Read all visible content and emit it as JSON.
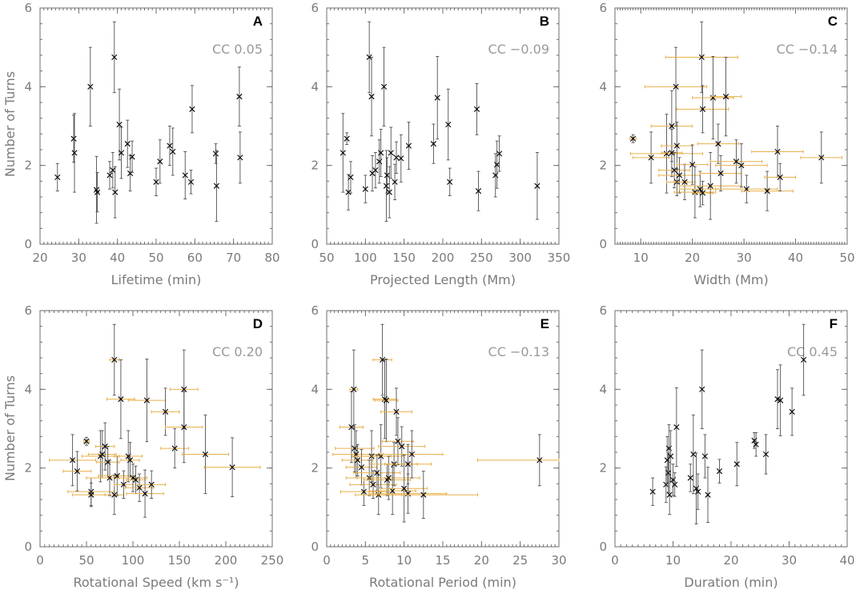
{
  "figure": {
    "ylabel": "Number of Turns"
  },
  "chart_data": [
    {
      "type": "scatter",
      "letter": "A",
      "cc": "CC 0.05",
      "xlabel": "Lifetime (min)",
      "ylabel": "Number of Turns",
      "xlim": [
        20,
        80
      ],
      "ylim": [
        0,
        6
      ],
      "xticks": [
        20,
        30,
        40,
        50,
        60,
        70,
        80
      ],
      "yticks": [
        0,
        2,
        4,
        6
      ],
      "xminor": 5,
      "points": [
        {
          "x": 24.5,
          "y": 1.7,
          "ye": 0.35
        },
        {
          "x": 28.7,
          "y": 2.68,
          "ye": 0.6
        },
        {
          "x": 28.9,
          "y": 2.32,
          "ye": 1.0
        },
        {
          "x": 33.0,
          "y": 4.0,
          "ye": 1.0
        },
        {
          "x": 34.6,
          "y": 1.38,
          "ye": 0.85
        },
        {
          "x": 34.8,
          "y": 1.32,
          "ye": 0.5
        },
        {
          "x": 38.0,
          "y": 1.75,
          "ye": 0.35
        },
        {
          "x": 38.8,
          "y": 1.88,
          "ye": 0.45
        },
        {
          "x": 39.2,
          "y": 4.75,
          "ye": 0.9
        },
        {
          "x": 39.4,
          "y": 1.32,
          "ye": 0.65
        },
        {
          "x": 40.5,
          "y": 3.04,
          "ye": 0.9
        },
        {
          "x": 41.0,
          "y": 2.32,
          "ye": 0.65
        },
        {
          "x": 42.6,
          "y": 2.55,
          "ye": 0.6
        },
        {
          "x": 43.3,
          "y": 1.8,
          "ye": 0.45
        },
        {
          "x": 43.8,
          "y": 2.22,
          "ye": 0.4
        },
        {
          "x": 50.0,
          "y": 1.58,
          "ye": 0.35
        },
        {
          "x": 51.0,
          "y": 2.1,
          "ye": 0.55
        },
        {
          "x": 53.5,
          "y": 2.5,
          "ye": 0.5
        },
        {
          "x": 54.3,
          "y": 2.35,
          "ye": 0.6
        },
        {
          "x": 57.5,
          "y": 1.75,
          "ye": 0.6
        },
        {
          "x": 59.0,
          "y": 1.58,
          "ye": 0.3
        },
        {
          "x": 59.3,
          "y": 3.43,
          "ye": 0.6
        },
        {
          "x": 65.4,
          "y": 2.3,
          "ye": 0.25
        },
        {
          "x": 65.6,
          "y": 1.48,
          "ye": 0.9
        },
        {
          "x": 71.5,
          "y": 3.75,
          "ye": 0.75
        },
        {
          "x": 71.7,
          "y": 2.2,
          "ye": 0.65
        }
      ]
    },
    {
      "type": "scatter",
      "letter": "B",
      "cc": "CC −0.09",
      "xlabel": "Projected Length (Mm)",
      "ylabel": "",
      "xlim": [
        50,
        350
      ],
      "ylim": [
        0,
        6
      ],
      "xticks": [
        50,
        100,
        150,
        200,
        250,
        300,
        350
      ],
      "yticks": [
        0,
        2,
        4,
        6
      ],
      "xminor": 25,
      "points": [
        {
          "x": 71,
          "y": 2.32,
          "ye": 1.0
        },
        {
          "x": 76,
          "y": 2.68,
          "ye": 0.15
        },
        {
          "x": 78,
          "y": 1.32,
          "ye": 0.45
        },
        {
          "x": 81,
          "y": 1.7,
          "ye": 0.4
        },
        {
          "x": 100,
          "y": 1.4,
          "ye": 0.35
        },
        {
          "x": 105,
          "y": 4.75,
          "ye": 0.9
        },
        {
          "x": 108,
          "y": 3.75,
          "ye": 1.0
        },
        {
          "x": 109,
          "y": 1.8,
          "ye": 0.45
        },
        {
          "x": 113,
          "y": 1.88,
          "ye": 0.45
        },
        {
          "x": 118,
          "y": 2.1,
          "ye": 0.55
        },
        {
          "x": 120,
          "y": 2.32,
          "ye": 0.6
        },
        {
          "x": 124,
          "y": 4.0,
          "ye": 1.0
        },
        {
          "x": 127,
          "y": 1.48,
          "ye": 0.9
        },
        {
          "x": 128,
          "y": 1.75,
          "ye": 0.45
        },
        {
          "x": 131,
          "y": 1.32,
          "ye": 0.65
        },
        {
          "x": 133,
          "y": 2.32,
          "ye": 0.65
        },
        {
          "x": 138,
          "y": 1.58,
          "ye": 0.45
        },
        {
          "x": 140,
          "y": 2.2,
          "ye": 0.4
        },
        {
          "x": 146,
          "y": 2.18,
          "ye": 0.6
        },
        {
          "x": 156,
          "y": 2.5,
          "ye": 0.6
        },
        {
          "x": 188,
          "y": 2.55,
          "ye": 0.5
        },
        {
          "x": 193,
          "y": 3.72,
          "ye": 1.05
        },
        {
          "x": 207,
          "y": 3.04,
          "ye": 0.9
        },
        {
          "x": 209,
          "y": 1.58,
          "ye": 0.35
        },
        {
          "x": 244,
          "y": 3.43,
          "ye": 0.65
        },
        {
          "x": 246,
          "y": 1.35,
          "ye": 0.5
        },
        {
          "x": 268,
          "y": 1.75,
          "ye": 0.55
        },
        {
          "x": 270,
          "y": 2.02,
          "ye": 0.6
        },
        {
          "x": 273,
          "y": 2.3,
          "ye": 0.45
        },
        {
          "x": 322,
          "y": 1.48,
          "ye": 0.85
        }
      ]
    },
    {
      "type": "scatter",
      "letter": "C",
      "cc": "CC −0.14",
      "xlabel": "Width (Mm)",
      "ylabel": "",
      "xlim": [
        5,
        50
      ],
      "ylim": [
        0,
        6
      ],
      "xticks": [
        10,
        20,
        30,
        40,
        50
      ],
      "yticks": [
        0,
        2,
        4,
        6
      ],
      "xminor": 2.5,
      "points": [
        {
          "x": 8.5,
          "y": 2.68,
          "ye": 0.1,
          "xe": 0.6
        },
        {
          "x": 12,
          "y": 2.2,
          "ye": 0.65,
          "xe": 3.5
        },
        {
          "x": 15,
          "y": 2.3,
          "ye": 1.0,
          "xe": 7
        },
        {
          "x": 16,
          "y": 3.0,
          "ye": 0.9,
          "xe": 4
        },
        {
          "x": 16,
          "y": 2.32,
          "ye": 0.6,
          "xe": 2
        },
        {
          "x": 16.5,
          "y": 1.88,
          "ye": 0.45,
          "xe": 3
        },
        {
          "x": 16.8,
          "y": 4.0,
          "ye": 1.0,
          "xe": 6
        },
        {
          "x": 17,
          "y": 2.5,
          "ye": 0.6,
          "xe": 3
        },
        {
          "x": 17,
          "y": 1.58,
          "ye": 0.35,
          "xe": 2
        },
        {
          "x": 17.5,
          "y": 1.75,
          "ye": 0.45,
          "xe": 4
        },
        {
          "x": 18.5,
          "y": 1.58,
          "ye": 0.45,
          "xe": 2
        },
        {
          "x": 20,
          "y": 2.02,
          "ye": 0.5,
          "xe": 3
        },
        {
          "x": 20.5,
          "y": 1.32,
          "ye": 0.65,
          "xe": 4
        },
        {
          "x": 21.5,
          "y": 1.4,
          "ye": 0.45,
          "xe": 4
        },
        {
          "x": 21.8,
          "y": 4.75,
          "ye": 0.9,
          "xe": 7
        },
        {
          "x": 22,
          "y": 3.43,
          "ye": 0.6,
          "xe": 5
        },
        {
          "x": 22,
          "y": 1.3,
          "ye": 0.3,
          "xe": 2
        },
        {
          "x": 23.5,
          "y": 1.48,
          "ye": 0.85,
          "xe": 6
        },
        {
          "x": 24,
          "y": 3.72,
          "ye": 1.05,
          "xe": 4
        },
        {
          "x": 25,
          "y": 2.55,
          "ye": 0.5,
          "xe": 4
        },
        {
          "x": 25.5,
          "y": 1.8,
          "ye": 0.45,
          "xe": 4
        },
        {
          "x": 26.5,
          "y": 3.75,
          "ye": 1.0,
          "xe": 3
        },
        {
          "x": 28.5,
          "y": 2.1,
          "ye": 0.55,
          "xe": 5
        },
        {
          "x": 29.5,
          "y": 2.0,
          "ye": 0.55,
          "xe": 5
        },
        {
          "x": 30.5,
          "y": 1.4,
          "ye": 0.35,
          "xe": 6
        },
        {
          "x": 34.5,
          "y": 1.35,
          "ye": 0.5,
          "xe": 5
        },
        {
          "x": 36.5,
          "y": 2.35,
          "ye": 0.65,
          "xe": 5
        },
        {
          "x": 37,
          "y": 1.7,
          "ye": 0.35,
          "xe": 3
        },
        {
          "x": 45,
          "y": 2.2,
          "ye": 0.65,
          "xe": 4
        }
      ]
    },
    {
      "type": "scatter",
      "letter": "D",
      "cc": "CC 0.20",
      "xlabel": "Rotational Speed (km s⁻¹)",
      "ylabel": "Number of Turns",
      "xlim": [
        0,
        250
      ],
      "ylim": [
        0,
        6
      ],
      "xticks": [
        0,
        50,
        100,
        150,
        200,
        250
      ],
      "yticks": [
        0,
        2,
        4,
        6
      ],
      "xminor": 25,
      "points": [
        {
          "x": 35,
          "y": 2.2,
          "ye": 0.65,
          "xe": 25
        },
        {
          "x": 40,
          "y": 1.92,
          "ye": 0.5,
          "xe": 15
        },
        {
          "x": 50,
          "y": 2.68,
          "ye": 0.1,
          "xe": 3
        },
        {
          "x": 55,
          "y": 1.4,
          "ye": 0.35,
          "xe": 25
        },
        {
          "x": 55,
          "y": 1.32,
          "ye": 0.3,
          "xe": 20
        },
        {
          "x": 65,
          "y": 2.3,
          "ye": 0.65,
          "xe": 20
        },
        {
          "x": 67,
          "y": 2.35,
          "ye": 0.6,
          "xe": 15
        },
        {
          "x": 70,
          "y": 2.55,
          "ye": 0.6,
          "xe": 10
        },
        {
          "x": 73,
          "y": 2.15,
          "ye": 0.4,
          "xe": 12
        },
        {
          "x": 75,
          "y": 1.75,
          "ye": 0.45,
          "xe": 25
        },
        {
          "x": 80,
          "y": 4.75,
          "ye": 0.9,
          "xe": 5
        },
        {
          "x": 80,
          "y": 1.32,
          "ye": 0.5,
          "xe": 10
        },
        {
          "x": 83,
          "y": 1.8,
          "ye": 0.5,
          "xe": 20
        },
        {
          "x": 87,
          "y": 3.75,
          "ye": 1.0,
          "xe": 15
        },
        {
          "x": 90,
          "y": 1.58,
          "ye": 0.35,
          "xe": 10
        },
        {
          "x": 95,
          "y": 2.3,
          "ye": 0.65,
          "xe": 15
        },
        {
          "x": 97,
          "y": 2.2,
          "ye": 0.45,
          "xe": 10
        },
        {
          "x": 100,
          "y": 1.75,
          "ye": 0.35,
          "xe": 15
        },
        {
          "x": 103,
          "y": 1.7,
          "ye": 0.35,
          "xe": 10
        },
        {
          "x": 107,
          "y": 1.5,
          "ye": 0.35,
          "xe": 15
        },
        {
          "x": 113,
          "y": 1.35,
          "ye": 0.6,
          "xe": 20
        },
        {
          "x": 115,
          "y": 3.72,
          "ye": 1.05,
          "xe": 20
        },
        {
          "x": 120,
          "y": 1.58,
          "ye": 0.35,
          "xe": 15
        },
        {
          "x": 135,
          "y": 3.43,
          "ye": 0.6,
          "xe": 15
        },
        {
          "x": 145,
          "y": 2.5,
          "ye": 0.5,
          "xe": 15
        },
        {
          "x": 155,
          "y": 4.0,
          "ye": 1.0,
          "xe": 15
        },
        {
          "x": 155,
          "y": 3.04,
          "ye": 0.9,
          "xe": 20
        },
        {
          "x": 178,
          "y": 2.35,
          "ye": 1.0,
          "xe": 25
        },
        {
          "x": 207,
          "y": 2.02,
          "ye": 0.75,
          "xe": 30
        }
      ]
    },
    {
      "type": "scatter",
      "letter": "E",
      "cc": "CC −0.13",
      "xlabel": "Rotational Period (min)",
      "ylabel": "",
      "xlim": [
        0,
        30
      ],
      "ylim": [
        0,
        6
      ],
      "xticks": [
        0,
        5,
        10,
        15,
        20,
        25,
        30
      ],
      "yticks": [
        0,
        2,
        4,
        6
      ],
      "xminor": 2.5,
      "points": [
        {
          "x": 3.2,
          "y": 3.04,
          "ye": 0.9,
          "xe": 1.5
        },
        {
          "x": 3.5,
          "y": 4.0,
          "ye": 1.0,
          "xe": 0.5
        },
        {
          "x": 3.6,
          "y": 2.5,
          "ye": 0.6,
          "xe": 2.5
        },
        {
          "x": 3.8,
          "y": 2.35,
          "ye": 0.6,
          "xe": 3
        },
        {
          "x": 4.0,
          "y": 2.2,
          "ye": 0.4,
          "xe": 2
        },
        {
          "x": 4.5,
          "y": 2.02,
          "ye": 0.45,
          "xe": 2
        },
        {
          "x": 4.8,
          "y": 1.4,
          "ye": 0.35,
          "xe": 3
        },
        {
          "x": 5.5,
          "y": 1.75,
          "ye": 0.45,
          "xe": 3
        },
        {
          "x": 5.8,
          "y": 2.3,
          "ye": 0.65,
          "xe": 2.5
        },
        {
          "x": 6.0,
          "y": 1.58,
          "ye": 0.35,
          "xe": 3
        },
        {
          "x": 6.5,
          "y": 1.88,
          "ye": 0.45,
          "xe": 3
        },
        {
          "x": 6.7,
          "y": 1.32,
          "ye": 0.5,
          "xe": 3
        },
        {
          "x": 7.0,
          "y": 2.3,
          "ye": 0.8,
          "xe": 3
        },
        {
          "x": 7.2,
          "y": 4.75,
          "ye": 0.9,
          "xe": 1.2
        },
        {
          "x": 7.5,
          "y": 3.75,
          "ye": 1.0,
          "xe": 1.5
        },
        {
          "x": 7.7,
          "y": 3.72,
          "ye": 1.05,
          "xe": 1.5
        },
        {
          "x": 7.8,
          "y": 1.7,
          "ye": 0.4,
          "xe": 3
        },
        {
          "x": 8.0,
          "y": 1.75,
          "ye": 0.55,
          "xe": 4
        },
        {
          "x": 8.5,
          "y": 1.42,
          "ye": 0.6,
          "xe": 3
        },
        {
          "x": 8.7,
          "y": 2.1,
          "ye": 0.55,
          "xe": 3
        },
        {
          "x": 9.0,
          "y": 3.43,
          "ye": 0.6,
          "xe": 2
        },
        {
          "x": 9.2,
          "y": 2.68,
          "ye": 0.6,
          "xe": 2
        },
        {
          "x": 9.7,
          "y": 2.55,
          "ye": 0.5,
          "xe": 3
        },
        {
          "x": 10,
          "y": 1.48,
          "ye": 0.85,
          "xe": 3
        },
        {
          "x": 10.5,
          "y": 2.1,
          "ye": 0.5,
          "xe": 3
        },
        {
          "x": 10.5,
          "y": 1.35,
          "ye": 0.5,
          "xe": 5
        },
        {
          "x": 11,
          "y": 2.35,
          "ye": 0.6,
          "xe": 4
        },
        {
          "x": 12.5,
          "y": 1.32,
          "ye": 0.6,
          "xe": 7
        },
        {
          "x": 27.5,
          "y": 2.2,
          "ye": 0.65,
          "xe": 8
        }
      ]
    },
    {
      "type": "scatter",
      "letter": "F",
      "cc": "CC 0.45",
      "xlabel": "Duration (min)",
      "ylabel": "",
      "xlim": [
        0,
        40
      ],
      "ylim": [
        0,
        6
      ],
      "xticks": [
        0,
        10,
        20,
        30,
        40
      ],
      "yticks": [
        0,
        2,
        4,
        6
      ],
      "xminor": 5,
      "points": [
        {
          "x": 6.5,
          "y": 1.4,
          "ye": 0.35
        },
        {
          "x": 8.8,
          "y": 1.58,
          "ye": 0.45
        },
        {
          "x": 9.0,
          "y": 2.2,
          "ye": 0.6
        },
        {
          "x": 9.2,
          "y": 1.88,
          "ye": 0.5
        },
        {
          "x": 9.3,
          "y": 2.5,
          "ye": 0.6
        },
        {
          "x": 9.4,
          "y": 1.32,
          "ye": 0.5
        },
        {
          "x": 9.6,
          "y": 2.3,
          "ye": 0.65
        },
        {
          "x": 10,
          "y": 1.7,
          "ye": 0.4
        },
        {
          "x": 10.3,
          "y": 1.58,
          "ye": 0.3
        },
        {
          "x": 10.6,
          "y": 3.04,
          "ye": 1.0
        },
        {
          "x": 13,
          "y": 1.75,
          "ye": 0.35
        },
        {
          "x": 13.5,
          "y": 2.35,
          "ye": 1.0
        },
        {
          "x": 14,
          "y": 1.48,
          "ye": 0.9
        },
        {
          "x": 14.3,
          "y": 1.4,
          "ye": 0.45
        },
        {
          "x": 15,
          "y": 4.0,
          "ye": 1.0
        },
        {
          "x": 15.5,
          "y": 2.3,
          "ye": 0.55
        },
        {
          "x": 16,
          "y": 1.32,
          "ye": 0.7
        },
        {
          "x": 18,
          "y": 1.92,
          "ye": 0.3
        },
        {
          "x": 21,
          "y": 2.1,
          "ye": 0.55
        },
        {
          "x": 24,
          "y": 2.7,
          "ye": 0.2
        },
        {
          "x": 24.3,
          "y": 2.6,
          "ye": 0.3
        },
        {
          "x": 26,
          "y": 2.35,
          "ye": 0.5
        },
        {
          "x": 28,
          "y": 3.75,
          "ye": 0.75
        },
        {
          "x": 28.5,
          "y": 3.72,
          "ye": 0.9
        },
        {
          "x": 30.5,
          "y": 3.43,
          "ye": 0.6
        },
        {
          "x": 32.5,
          "y": 4.75,
          "ye": 0.9
        }
      ]
    }
  ]
}
